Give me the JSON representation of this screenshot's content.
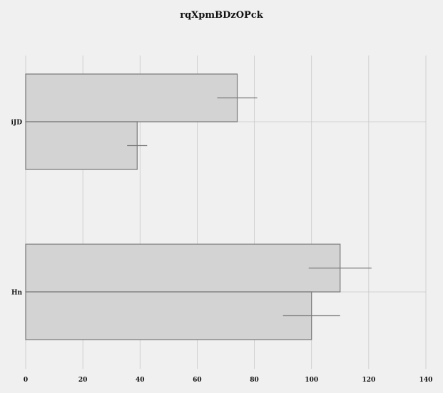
{
  "chart_data": {
    "type": "bar",
    "orientation": "horizontal",
    "title": "rqXpmBDzOPck",
    "xlabel": "",
    "ylabel": "",
    "categories": [
      "iJD",
      "Hn"
    ],
    "series": [
      {
        "values": [
          74,
          110
        ],
        "errors": [
          7,
          11
        ]
      },
      {
        "values": [
          39,
          100
        ],
        "errors": [
          3.5,
          10
        ]
      }
    ],
    "xlim": [
      0,
      140
    ],
    "xticks": [
      0,
      20,
      40,
      60,
      80,
      100,
      120,
      140
    ],
    "grid": true,
    "legend": "none",
    "colors": {
      "bar_fill": "#d3d3d3",
      "bar_edge": "#777777",
      "background": "#f0f0f0",
      "grid": "#c8c8c8",
      "error": "#777777"
    }
  }
}
